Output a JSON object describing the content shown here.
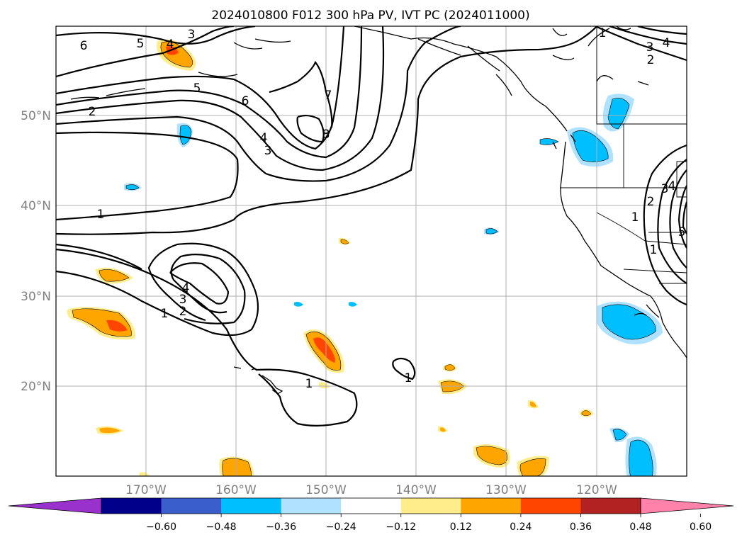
{
  "title": "2024010800 F012 300 hPa PV, IVT PC (2024011000)",
  "map": {
    "lat_labels": [
      "50°N",
      "40°N",
      "30°N",
      "20°N"
    ],
    "lon_labels": [
      "170°W",
      "160°W",
      "150°W",
      "140°W",
      "130°W",
      "120°W"
    ],
    "contour_labels": [
      "6",
      "5",
      "4",
      "3",
      "5",
      "2",
      "6",
      "7",
      "8",
      "4",
      "3",
      "1",
      "4",
      "3",
      "2",
      "1",
      "1",
      "1",
      "1",
      "3",
      "4",
      "2",
      "1",
      "2",
      "3",
      "4",
      "5",
      "1"
    ]
  },
  "colorbar": {
    "colors": [
      "#9932cc",
      "#00008b",
      "#3a5fcd",
      "#00bfff",
      "#b0e2ff",
      "#ffffff",
      "#ffec8b",
      "#ffa500",
      "#ff4500",
      "#b22222",
      "#ff82ab"
    ],
    "tick_labels": [
      "−0.60",
      "−0.48",
      "−0.36",
      "−0.24",
      "−0.12",
      "0.12",
      "0.24",
      "0.36",
      "0.48",
      "0.60"
    ]
  },
  "colors": {
    "contour": "#000000",
    "coast": "#000000",
    "grid": "#b0b0b0",
    "neg_light": "#b0e2ff",
    "neg_mid": "#00bfff",
    "pos_light": "#ffec8b",
    "pos_mid": "#ffa500",
    "pos_strong": "#ff4500"
  }
}
